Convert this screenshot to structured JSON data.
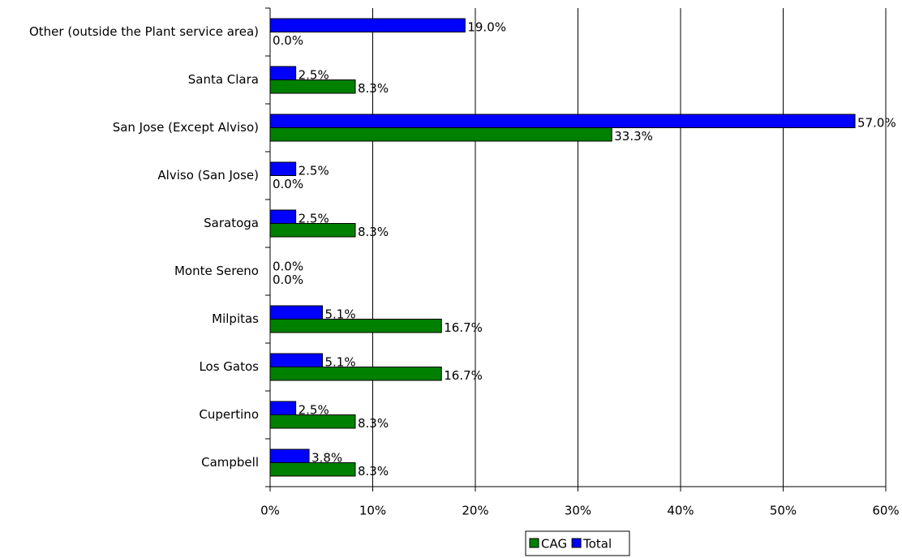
{
  "chart_data": {
    "type": "hbar",
    "categories": [
      "Other (outside the Plant service area)",
      "Santa Clara",
      "San Jose (Except Alviso)",
      "Alviso (San Jose)",
      "Saratoga",
      "Monte Sereno",
      "Milpitas",
      "Los Gatos",
      "Cupertino",
      "Campbell"
    ],
    "series": [
      {
        "name": "CAG",
        "color": "#008000",
        "values": [
          0.0,
          8.3,
          33.3,
          0.0,
          8.3,
          0.0,
          16.7,
          16.7,
          8.3,
          8.3
        ],
        "value_labels": [
          "0.0%",
          "8.3%",
          "33.3%",
          "0.0%",
          "8.3%",
          "0.0%",
          "16.7%",
          "16.7%",
          "8.3%",
          "8.3%"
        ]
      },
      {
        "name": "Total",
        "color": "#0000ff",
        "values": [
          19.0,
          2.5,
          57.0,
          2.5,
          2.5,
          0.0,
          5.1,
          5.1,
          2.5,
          3.8
        ],
        "value_labels": [
          "19.0%",
          "2.5%",
          "57.0%",
          "2.5%",
          "2.5%",
          "0.0%",
          "5.1%",
          "5.1%",
          "2.5%",
          "3.8%"
        ]
      }
    ],
    "xlim": [
      0,
      60
    ],
    "xticks": [
      {
        "value": 0,
        "label": "0%"
      },
      {
        "value": 10,
        "label": "10%"
      },
      {
        "value": 20,
        "label": "20%"
      },
      {
        "value": 30,
        "label": "30%"
      },
      {
        "value": 40,
        "label": "40%"
      },
      {
        "value": 50,
        "label": "50%"
      },
      {
        "value": 60,
        "label": "60%"
      }
    ],
    "grid": true,
    "legend": "bottom"
  }
}
